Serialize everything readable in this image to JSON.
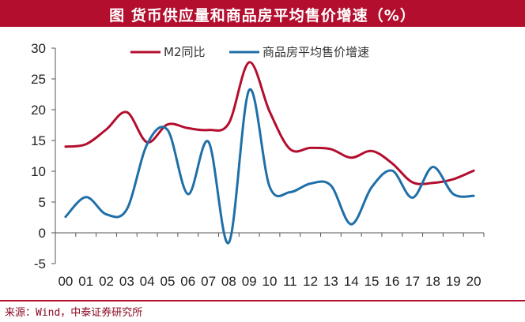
{
  "title": "图  货币供应量和商品房平均售价增速（%）",
  "source": "来源：Wind，中泰证券研究所",
  "chart_data": {
    "type": "line",
    "title": "图  货币供应量和商品房平均售价增速（%）",
    "xlabel": "",
    "ylabel": "",
    "ylim": [
      -5,
      30
    ],
    "yticks": [
      -5,
      0,
      5,
      10,
      15,
      20,
      25,
      30
    ],
    "categories": [
      "00",
      "01",
      "02",
      "03",
      "04",
      "05",
      "06",
      "07",
      "08",
      "09",
      "10",
      "11",
      "12",
      "13",
      "14",
      "15",
      "16",
      "17",
      "18",
      "19",
      "20"
    ],
    "grid": false,
    "legend_position": "top",
    "series": [
      {
        "name": "M2同比",
        "color": "#b30e2e",
        "values": [
          14.0,
          14.4,
          16.8,
          19.6,
          14.7,
          17.6,
          17.0,
          16.7,
          17.8,
          27.7,
          19.7,
          13.6,
          13.8,
          13.6,
          12.2,
          13.3,
          11.3,
          8.2,
          8.1,
          8.7,
          10.1
        ]
      },
      {
        "name": "商品房平均售价增速",
        "color": "#1f6fa8",
        "values": [
          2.6,
          5.8,
          3.0,
          3.8,
          14.4,
          16.7,
          6.3,
          14.8,
          -1.6,
          23.2,
          7.5,
          6.6,
          8.0,
          7.7,
          1.4,
          7.4,
          10.1,
          5.7,
          10.7,
          6.3,
          6.0
        ]
      }
    ]
  }
}
